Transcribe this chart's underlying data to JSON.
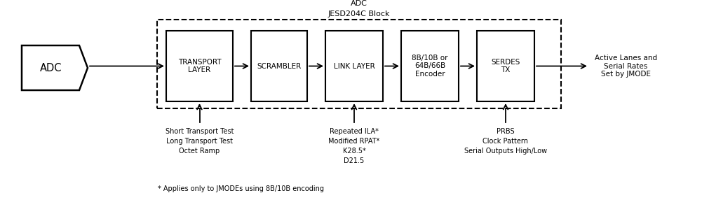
{
  "title_line1": "ADC",
  "title_line2": "JESD204C Block",
  "adc_label": "ADC",
  "block_labels": [
    "TRANSPORT\nLAYER",
    "SCRAMBLER",
    "LINK LAYER",
    "8B/10B or\n64B/66B\nEncoder",
    "SERDES\nTX"
  ],
  "right_label": "Active Lanes and\nSerial Rates\nSet by JMODE",
  "injection_labels": [
    "Short Transport Test\nLong Transport Test\nOctet Ramp",
    "Repeated ILA*\nModified RPAT*\nK28.5*\nD21.5",
    "PRBS\nClock Pattern\nSerial Outputs High/Low"
  ],
  "footer": "* Applies only to JMODEs using 8B/10B encoding",
  "line_color": "#000000",
  "text_color": "#000000",
  "bg_color": "#ffffff",
  "font_size": 8.0,
  "label_font_size": 7.0,
  "block_font_size": 7.5
}
